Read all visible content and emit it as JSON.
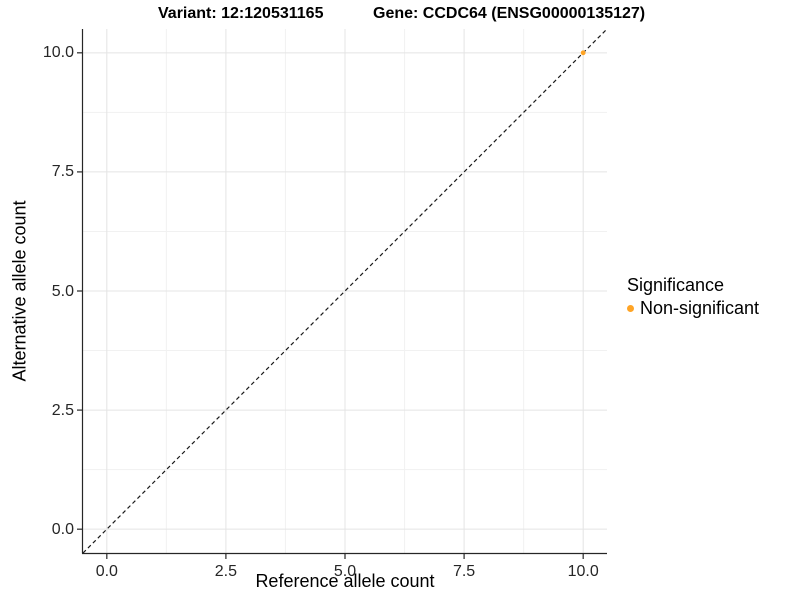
{
  "header": {
    "variant_title": "Variant: 12:120531165",
    "gene_title": "Gene: CCDC64 (ENSG00000135127)"
  },
  "palette": {
    "point_orange": "#FFA425",
    "grid_major": "#e4e4e4",
    "grid_minor": "#f1f1f1",
    "axis_line": "#262626",
    "reference_line": "#1a1a1a",
    "background": "#ffffff"
  },
  "chart_data": {
    "type": "scatter",
    "title": "Variant: 12:120531165    Gene: CCDC64 (ENSG00000135127)",
    "xlabel": "Reference allele count",
    "ylabel": "Alternative allele count",
    "xlim": [
      -0.5,
      10.5
    ],
    "ylim": [
      -0.5,
      10.5
    ],
    "grid": true,
    "x_ticks": [
      {
        "value": 0,
        "label": "0.0"
      },
      {
        "value": 2.5,
        "label": "2.5"
      },
      {
        "value": 5,
        "label": "5.0"
      },
      {
        "value": 7.5,
        "label": "7.5"
      },
      {
        "value": 10,
        "label": "10.0"
      }
    ],
    "y_ticks": [
      {
        "value": 0,
        "label": "0.0"
      },
      {
        "value": 2.5,
        "label": "2.5"
      },
      {
        "value": 5,
        "label": "5.0"
      },
      {
        "value": 7.5,
        "label": "7.5"
      },
      {
        "value": 10,
        "label": "10.0"
      }
    ],
    "reference_line": {
      "slope": 1,
      "intercept": 0,
      "style": "dashed",
      "color": "#1a1a1a"
    },
    "series": [
      {
        "name": "Non-significant",
        "color": "#FFA425",
        "points": [
          {
            "x": 10,
            "y": 10
          }
        ]
      }
    ],
    "legend": {
      "position": "right",
      "title": "Significance",
      "items": [
        {
          "label": "Non-significant",
          "color": "#FFA425"
        }
      ]
    }
  }
}
